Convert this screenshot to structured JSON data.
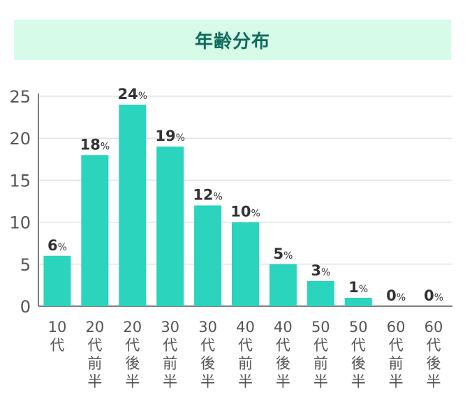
{
  "title": "年齢分布",
  "colors": {
    "bar": "#2ad4bd",
    "title_bg": "#d6fbe8",
    "title_text": "#0f6b5c",
    "axis": "#555555",
    "grid": "#e3e3e3",
    "tick_label": "#555555",
    "data_label": "#333333"
  },
  "chart_data": {
    "type": "bar",
    "title": "年齢分布",
    "xlabel": "",
    "ylabel": "",
    "ylim": [
      0,
      25
    ],
    "yticks": [
      0,
      5,
      10,
      15,
      20,
      25
    ],
    "grid": true,
    "categories": [
      "10代",
      "20代前半",
      "20代後半",
      "30代前半",
      "30代後半",
      "40代前半",
      "40代後半",
      "50代前半",
      "50代後半",
      "60代前半",
      "60代後半"
    ],
    "values": [
      6,
      18,
      24,
      19,
      12,
      10,
      5,
      3,
      1,
      0,
      0
    ],
    "value_suffix": "%"
  }
}
